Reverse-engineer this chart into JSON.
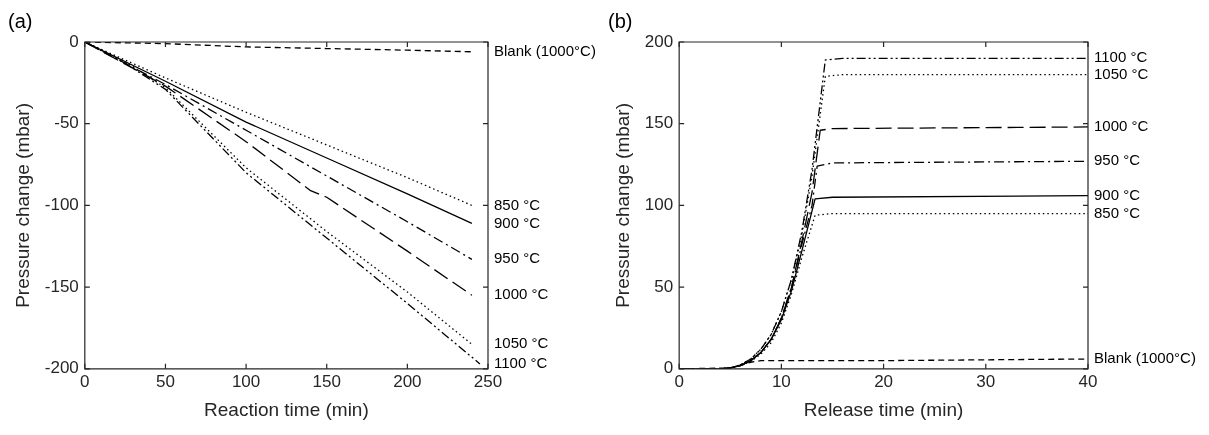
{
  "chart_data": [
    {
      "type": "line",
      "title": "(a)",
      "xlabel": "Reaction time (min)",
      "ylabel": "Pressure change (mbar)",
      "xlim": [
        0,
        250
      ],
      "xticks": [
        0,
        50,
        100,
        150,
        200,
        250
      ],
      "ylim": [
        -200,
        0
      ],
      "yticks": [
        -200,
        -150,
        -100,
        -50,
        0
      ],
      "grid": false,
      "legend": false,
      "marker": "none",
      "series": [
        {
          "name": "Blank (1000°C)",
          "color": "#000000",
          "line_style": "dashed",
          "x": [
            0,
            50,
            100,
            150,
            200,
            240
          ],
          "values": [
            0,
            -1,
            -3,
            -4,
            -5,
            -6
          ]
        },
        {
          "name": "850 °C",
          "color": "#000000",
          "line_style": "dotted",
          "x": [
            0,
            50,
            100,
            150,
            200,
            240
          ],
          "values": [
            0,
            -22,
            -43,
            -63,
            -83,
            -100
          ]
        },
        {
          "name": "900 °C",
          "color": "#000000",
          "line_style": "solid",
          "x": [
            0,
            50,
            100,
            150,
            200,
            240
          ],
          "values": [
            0,
            -24,
            -49,
            -71,
            -93,
            -111
          ]
        },
        {
          "name": "950 °C",
          "color": "#000000",
          "line_style": "dashdot",
          "x": [
            0,
            50,
            100,
            150,
            200,
            240
          ],
          "values": [
            0,
            -26,
            -54,
            -82,
            -110,
            -133
          ]
        },
        {
          "name": "1000 °C",
          "color": "#000000",
          "line_style": "longdash",
          "x": [
            0,
            50,
            100,
            140,
            150,
            200,
            240
          ],
          "values": [
            0,
            -27,
            -61,
            -91,
            -95,
            -128,
            -155
          ]
        },
        {
          "name": "1050 °C",
          "color": "#000000",
          "line_style": "dotted",
          "x": [
            0,
            25,
            50,
            100,
            150,
            200,
            240
          ],
          "values": [
            0,
            -12,
            -28,
            -77,
            -116,
            -153,
            -185
          ]
        },
        {
          "name": "1100 °C",
          "color": "#000000",
          "line_style": "dashdotdot",
          "x": [
            0,
            25,
            50,
            100,
            150,
            200,
            245
          ],
          "values": [
            0,
            -13,
            -29,
            -80,
            -120,
            -160,
            -197
          ]
        }
      ]
    },
    {
      "type": "line",
      "title": "(b)",
      "xlabel": "Release time (min)",
      "ylabel": "Pressure change (mbar)",
      "xlim": [
        0,
        40
      ],
      "xticks": [
        0,
        10,
        20,
        30,
        40
      ],
      "ylim": [
        0,
        200
      ],
      "yticks": [
        0,
        50,
        100,
        150,
        200
      ],
      "grid": false,
      "legend": false,
      "marker": "none",
      "series": [
        {
          "name": "1100 °C",
          "color": "#000000",
          "line_style": "dashdotdot",
          "x": [
            0,
            4,
            5,
            6,
            7,
            8,
            9,
            10,
            11,
            12,
            13,
            14.3,
            16,
            40
          ],
          "values": [
            0,
            0,
            0.5,
            2.5,
            6,
            12,
            21,
            35,
            55,
            84,
            122,
            189,
            190,
            190
          ]
        },
        {
          "name": "1050 °C",
          "color": "#000000",
          "line_style": "dotted",
          "x": [
            0,
            4,
            5,
            6,
            7,
            8,
            9,
            10,
            11,
            12,
            13,
            14.3,
            16,
            40
          ],
          "values": [
            0,
            0,
            0.5,
            2.5,
            6,
            12,
            21,
            35,
            55,
            82,
            118,
            179,
            180,
            180
          ]
        },
        {
          "name": "1000 °C",
          "color": "#000000",
          "line_style": "longdash",
          "x": [
            0,
            4,
            5,
            6,
            7,
            8,
            9,
            10,
            11,
            12,
            13,
            13.8,
            15,
            40
          ],
          "values": [
            0,
            0,
            0.5,
            2,
            5,
            10,
            18,
            31,
            50,
            78,
            108,
            146,
            147,
            148
          ]
        },
        {
          "name": "950 °C",
          "color": "#000000",
          "line_style": "dashdot",
          "x": [
            0,
            4,
            5,
            6,
            7,
            8,
            9,
            10,
            11,
            12,
            13,
            13.5,
            15,
            40
          ],
          "values": [
            0,
            0,
            0.5,
            2,
            5,
            10,
            18,
            31,
            50,
            76,
            100,
            124,
            126,
            127
          ]
        },
        {
          "name": "900 °C",
          "color": "#000000",
          "line_style": "solid",
          "x": [
            0,
            4,
            5,
            6,
            7,
            8,
            9,
            10,
            11,
            12,
            13.3,
            15,
            40
          ],
          "values": [
            0,
            0,
            0.5,
            2,
            5,
            10,
            18,
            30,
            48,
            72,
            104,
            105,
            106
          ]
        },
        {
          "name": "850 °C",
          "color": "#000000",
          "line_style": "dotted",
          "x": [
            0,
            4,
            5,
            6,
            7,
            8,
            9,
            10,
            11,
            12,
            13.3,
            15,
            40
          ],
          "values": [
            0,
            0,
            0.5,
            2,
            4.5,
            9,
            16,
            28,
            46,
            68,
            94,
            95,
            95
          ]
        },
        {
          "name": "Blank (1000°C)",
          "color": "#000000",
          "line_style": "dashed",
          "x": [
            0,
            5,
            6,
            7,
            8,
            20,
            40
          ],
          "values": [
            0,
            0.5,
            2,
            4,
            5,
            5,
            6
          ]
        }
      ]
    }
  ]
}
